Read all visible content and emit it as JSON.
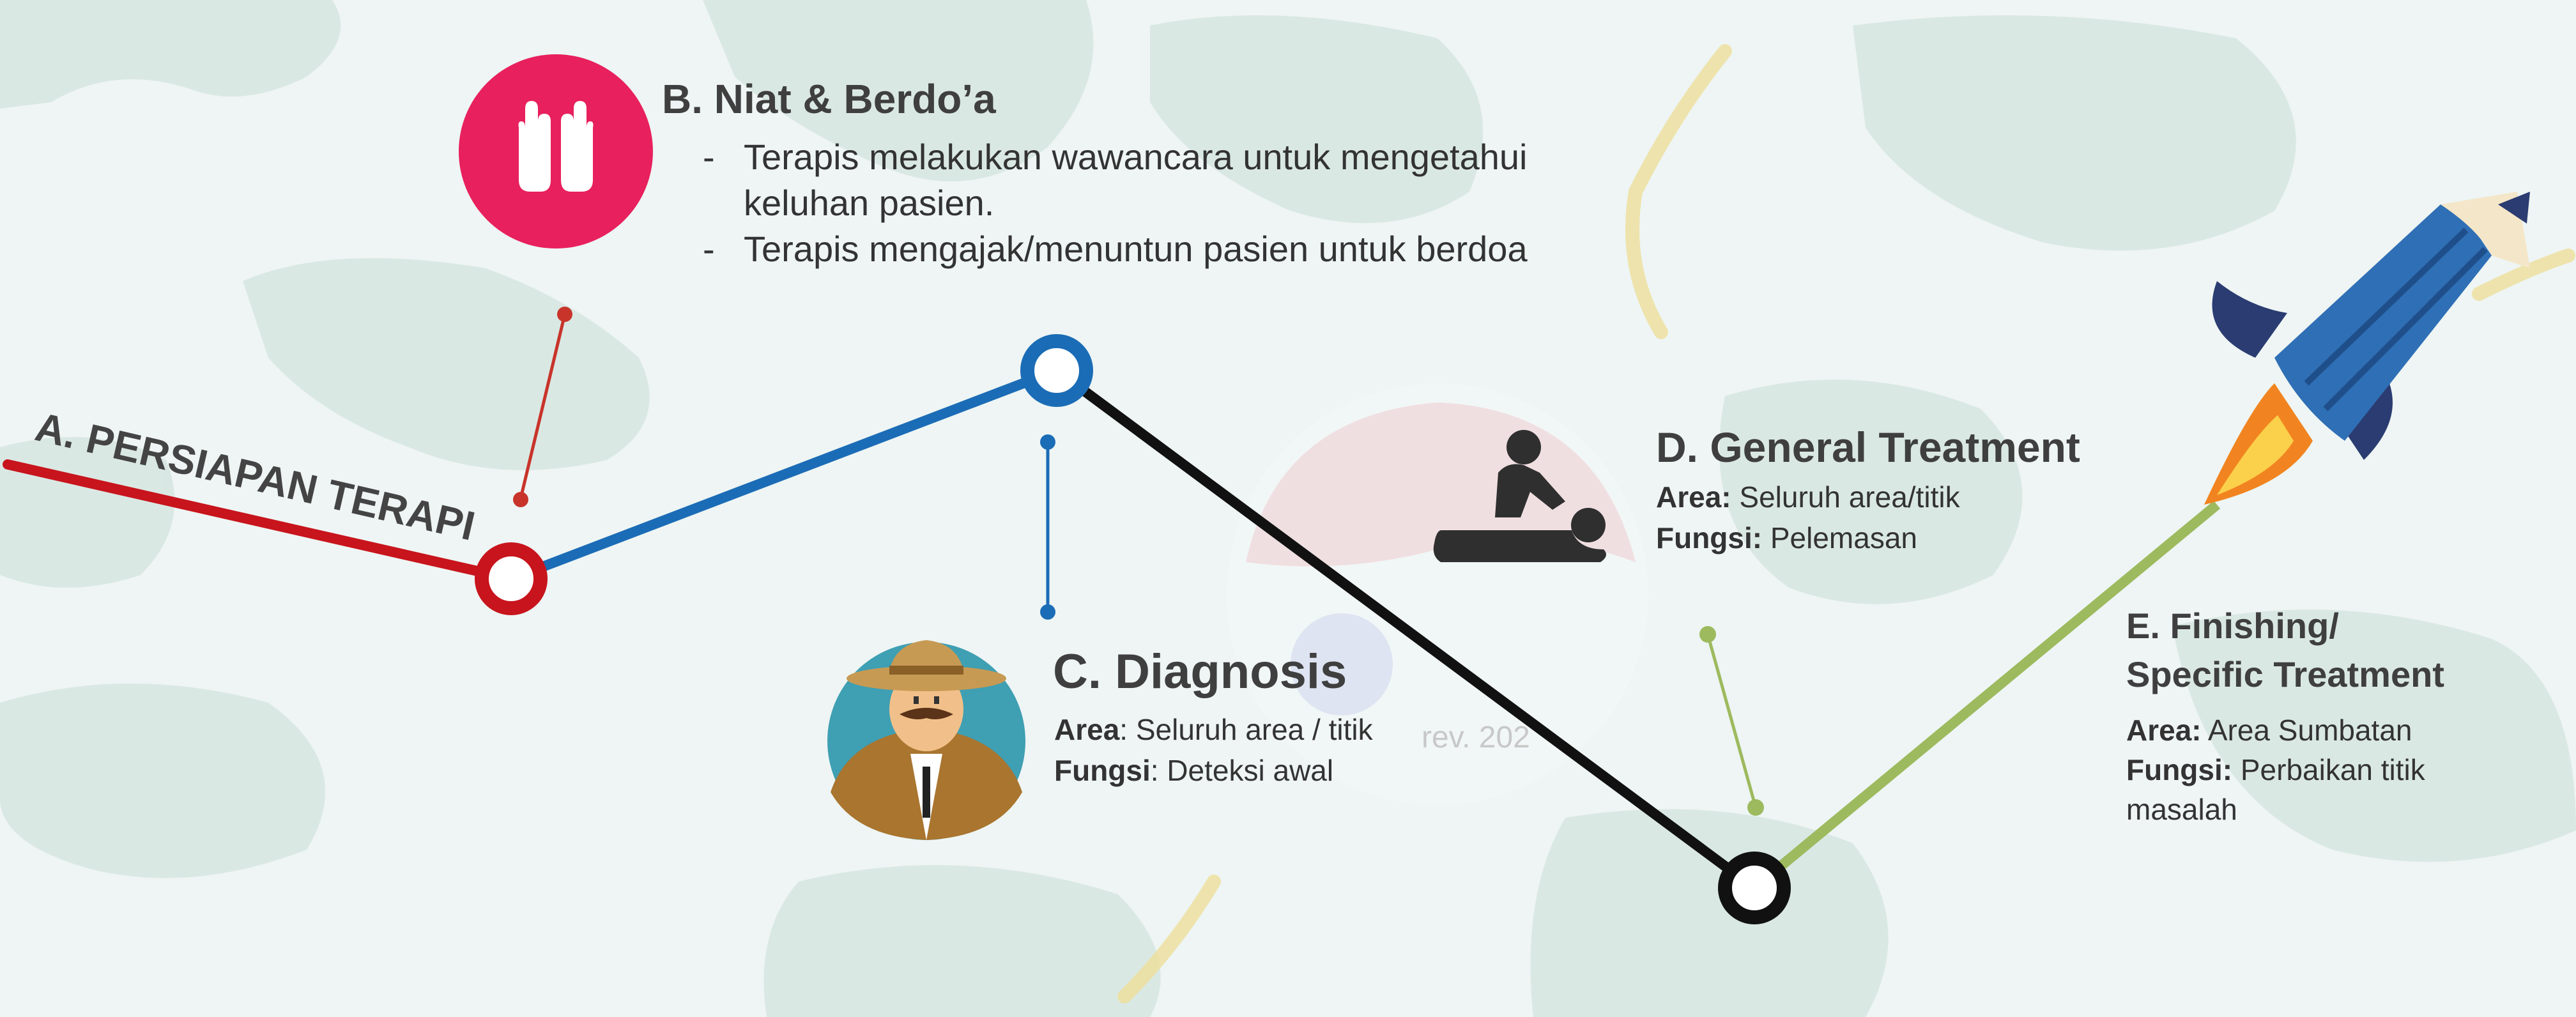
{
  "steps": {
    "a": {
      "title": "A. PERSIAPAN TERAPI",
      "color": "#c8141c"
    },
    "b": {
      "title": "B. Niat & Berdo’a",
      "bullet_mark": "-",
      "bullets": [
        "Terapis melakukan wawancara  untuk mengetahui keluhan pasien.",
        "Terapis mengajak/menuntun pasien untuk berdoa"
      ],
      "icon": "praying-hands-icon",
      "icon_bg": "#e8205d",
      "color": "#1b6cb6"
    },
    "c": {
      "title": "C. Diagnosis",
      "area_label": "Area",
      "area_value": ": Seluruh area / titik",
      "fungsi_label": "Fungsi",
      "fungsi_value": ": Deteksi awal",
      "icon": "detective-icon",
      "color": "#111111"
    },
    "d": {
      "title": "D. General Treatment",
      "area_label": "Area:",
      "area_value": " Seluruh area/titik",
      "fungsi_label": "Fungsi:",
      "fungsi_value": " Pelemasan",
      "icon": "massage-icon"
    },
    "e": {
      "title_line1": "E. Finishing/",
      "title_line2": "Specific Treatment",
      "area_label": "Area:",
      "area_value": " Area Sumbatan",
      "fungsi_label": "Fungsi:",
      "fungsi_value": " Perbaikan titik masalah",
      "icon": "rocket-icon",
      "color": "#9dba5e"
    }
  },
  "watermark": {
    "text": "rev. 202"
  }
}
